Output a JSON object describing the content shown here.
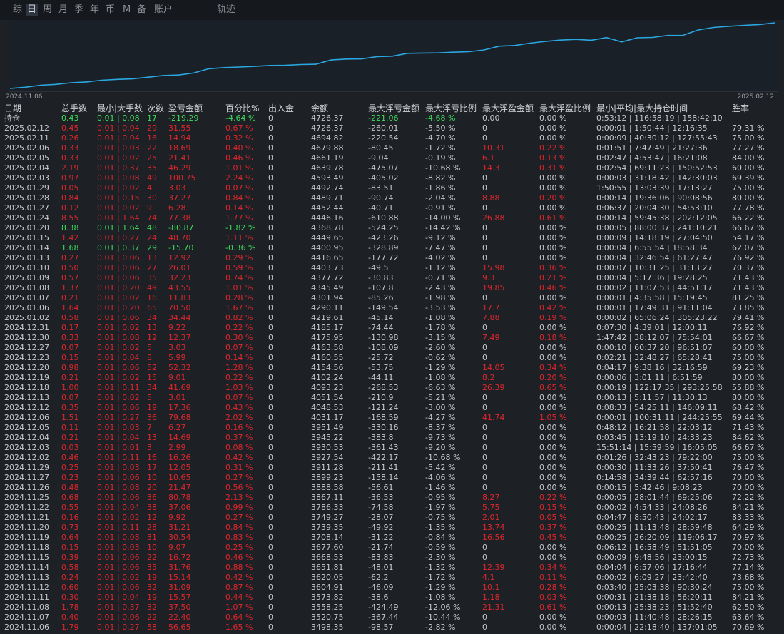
{
  "tabs": [
    "综",
    "日",
    "周",
    "月",
    "季",
    "年",
    "币",
    "M",
    "备",
    "账户"
  ],
  "selected_tab": "日",
  "track_tab": "轨迹",
  "curve": {
    "start_label": "2024.11.06",
    "end_label": "2025.02.12"
  },
  "table": {
    "columns": [
      "日期",
      "总手数",
      "最小|大手数",
      "次数",
      "盈亏金额",
      "百分比%",
      "出入金",
      "余额",
      "最大浮亏金额",
      "最大浮亏比例",
      "最大浮盈金额",
      "最大浮盈比例",
      "最小|平均|最大持仓时间",
      "胜率"
    ],
    "holding": [
      "持仓",
      "0.43",
      "0.01 | 0.08",
      "17",
      "-219.29",
      "-4.64 %",
      "0",
      "4726.37",
      "-221.06",
      "-4.68 %",
      "0.00",
      "0.00 %",
      "0:53:12 | 116:58:19 | 158:42:10"
    ],
    "rows": [
      [
        "2025.02.12",
        "0.45",
        "0.01 | 0.04",
        "29",
        "31.55",
        "0.67 %",
        "0",
        "4726.37",
        "-260.01",
        "-5.50 %",
        "0",
        "0.00 %",
        "0:00:01 | 1:50:44 | 12:16:35",
        "79.31 %"
      ],
      [
        "2025.02.11",
        "0.26",
        "0.01 | 0.04",
        "16",
        "14.94",
        "0.32 %",
        "0",
        "4694.82",
        "-220.54",
        "-4.70 %",
        "0",
        "0.00 %",
        "0:00:09 | 40:30:12 | 127:55:43",
        "75.00 %"
      ],
      [
        "2025.02.06",
        "0.33",
        "0.01 | 0.03",
        "22",
        "18.69",
        "0.40 %",
        "0",
        "4679.88",
        "-80.45",
        "-1.72 %",
        "10.31",
        "0.22 %",
        "0:01:51 | 7:47:49 | 21:27:36",
        "77.27 %"
      ],
      [
        "2025.02.05",
        "0.33",
        "0.01 | 0.02",
        "25",
        "21.41",
        "0.46 %",
        "0",
        "4661.19",
        "-9.04",
        "-0.19 %",
        "6.1",
        "0.13 %",
        "0:02:47 | 4:53:47 | 16:21:08",
        "84.00 %"
      ],
      [
        "2025.02.04",
        "2.19",
        "0.01 | 0.37",
        "35",
        "46.29",
        "1.01 %",
        "0",
        "4639.78",
        "-475.07",
        "-10.68 %",
        "14.3",
        "0.31 %",
        "0:02:54 | 69:11:23 | 150:52:53",
        "60.00 %"
      ],
      [
        "2025.02.03",
        "0.97",
        "0.01 | 0.08",
        "49",
        "100.75",
        "2.24 %",
        "0",
        "4593.49",
        "-405.02",
        "-8.82 %",
        "0",
        "0.00 %",
        "0:00:03 | 31:18:42 | 142:30:03",
        "69.39 %"
      ],
      [
        "2025.01.29",
        "0.05",
        "0.01 | 0.02",
        "4",
        "3.03",
        "0.07 %",
        "0",
        "4492.74",
        "-83.51",
        "-1.86 %",
        "0",
        "0.00 %",
        "1:50:55 | 13:03:39 | 17:13:27",
        "75.00 %"
      ],
      [
        "2025.01.28",
        "0.84",
        "0.01 | 0.15",
        "30",
        "37.27",
        "0.84 %",
        "0",
        "4489.71",
        "-90.74",
        "-2.04 %",
        "8.88",
        "0.20 %",
        "0:00:14 | 19:36:06 | 90:08:56",
        "80.00 %"
      ],
      [
        "2025.01.27",
        "0.12",
        "0.01 | 0.02",
        "9",
        "6.28",
        "0.14 %",
        "0",
        "4452.44",
        "-40.71",
        "-0.91 %",
        "0",
        "0.00 %",
        "0:06:37 | 20:04:30 | 54:53:10",
        "77.78 %"
      ],
      [
        "2025.01.24",
        "8.55",
        "0.01 | 1.64",
        "74",
        "77.38",
        "1.77 %",
        "0",
        "4446.16",
        "-610.88",
        "-14.00 %",
        "26.88",
        "0.61 %",
        "0:00:14 | 59:45:38 | 202:12:05",
        "66.22 %"
      ],
      [
        "2025.01.20",
        "8.38",
        "0.01 | 1.64",
        "48",
        "-80.87",
        "-1.82 %",
        "0",
        "4368.78",
        "-524.25",
        "-14.42 %",
        "0",
        "0.00 %",
        "0:00:05 | 88:00:37 | 241:10:21",
        "66.67 %"
      ],
      [
        "2025.01.15",
        "1.42",
        "0.01 | 0.27",
        "24",
        "48.70",
        "1.11 %",
        "0",
        "4449.65",
        "-423.26",
        "-9.12 %",
        "0",
        "0.00 %",
        "0:00:09 | 14:18:19 | 27:04:50",
        "54.17 %"
      ],
      [
        "2025.01.14",
        "1.68",
        "0.01 | 0.37",
        "29",
        "-15.70",
        "-0.36 %",
        "0",
        "4400.95",
        "-328.89",
        "-7.47 %",
        "0",
        "0.00 %",
        "0:00:04 | 6:55:54 | 18:58:34",
        "62.07 %"
      ],
      [
        "2025.01.13",
        "0.27",
        "0.01 | 0.06",
        "13",
        "12.92",
        "0.29 %",
        "0",
        "4416.65",
        "-177.72",
        "-4.02 %",
        "0",
        "0.00 %",
        "0:00:04 | 32:46:54 | 61:27:47",
        "76.92 %"
      ],
      [
        "2025.01.10",
        "0.50",
        "0.01 | 0.06",
        "27",
        "26.01",
        "0.59 %",
        "0",
        "4403.73",
        "-49.5",
        "-1.12 %",
        "15.98",
        "0.36 %",
        "0:00:07 | 10:31:25 | 31:13:27",
        "70.37 %"
      ],
      [
        "2025.01.09",
        "0.57",
        "0.01 | 0.06",
        "35",
        "32.23",
        "0.74 %",
        "0",
        "4377.72",
        "-30.83",
        "-0.71 %",
        "9.3",
        "0.21 %",
        "0:00:04 | 5:17:36 | 19:28:25",
        "71.43 %"
      ],
      [
        "2025.01.08",
        "1.37",
        "0.01 | 0.20",
        "49",
        "43.55",
        "1.01 %",
        "0",
        "4345.49",
        "-107.8",
        "-2.43 %",
        "19.85",
        "0.46 %",
        "0:00:02 | 11:07:53 | 44:51:17",
        "71.43 %"
      ],
      [
        "2025.01.07",
        "0.21",
        "0.01 | 0.02",
        "16",
        "11.83",
        "0.28 %",
        "0",
        "4301.94",
        "-85.26",
        "-1.98 %",
        "0",
        "0.00 %",
        "0:00:01 | 4:35:58 | 15:19:45",
        "81.25 %"
      ],
      [
        "2025.01.06",
        "1.64",
        "0.01 | 0.20",
        "65",
        "70.50",
        "1.67 %",
        "0",
        "4290.11",
        "-149.54",
        "-3.53 %",
        "17.7",
        "0.42 %",
        "0:00:01 | 17:49:31 | 91:11:04",
        "73.85 %"
      ],
      [
        "2025.01.02",
        "0.58",
        "0.01 | 0.06",
        "34",
        "34.44",
        "0.82 %",
        "0",
        "4219.61",
        "-45.14",
        "-1.08 %",
        "7.88",
        "0.19 %",
        "0:00:02 | 65:06:24 | 305:23:22",
        "79.41 %"
      ],
      [
        "2024.12.31",
        "0.17",
        "0.01 | 0.02",
        "13",
        "9.22",
        "0.22 %",
        "0",
        "4185.17",
        "-74.44",
        "-1.78 %",
        "0",
        "0.00 %",
        "0:07:30 | 4:39:01 | 12:00:11",
        "76.92 %"
      ],
      [
        "2024.12.30",
        "0.33",
        "0.01 | 0.08",
        "12",
        "12.37",
        "0.30 %",
        "0",
        "4175.95",
        "-130.98",
        "-3.15 %",
        "7.49",
        "0.18 %",
        "1:47:42 | 38:12:07 | 75:54:01",
        "66.67 %"
      ],
      [
        "2024.12.27",
        "0.07",
        "0.01 | 0.02",
        "5",
        "3.03",
        "0.07 %",
        "0",
        "4163.58",
        "-108.09",
        "-2.60 %",
        "0",
        "0.00 %",
        "0:00:10 | 60:37:20 | 96:51:07",
        "60.00 %"
      ],
      [
        "2024.12.23",
        "0.15",
        "0.01 | 0.04",
        "8",
        "5.99",
        "0.14 %",
        "0",
        "4160.55",
        "-25.72",
        "-0.62 %",
        "0",
        "0.00 %",
        "0:02:21 | 32:48:27 | 65:28:41",
        "75.00 %"
      ],
      [
        "2024.12.20",
        "0.98",
        "0.01 | 0.06",
        "52",
        "52.32",
        "1.28 %",
        "0",
        "4154.56",
        "-53.75",
        "-1.29 %",
        "14.05",
        "0.34 %",
        "0:04:17 | 9:38:16 | 32:16:59",
        "69.23 %"
      ],
      [
        "2024.12.19",
        "0.21",
        "0.01 | 0.02",
        "15",
        "9.01",
        "0.22 %",
        "0",
        "4102.24",
        "-44.11",
        "-1.08 %",
        "8.2",
        "0.20 %",
        "0:00:06 | 3:01:11 | 6:51:59",
        "80.00 %"
      ],
      [
        "2024.12.18",
        "1.00",
        "0.01 | 0.11",
        "34",
        "41.69",
        "1.03 %",
        "0",
        "4093.23",
        "-268.53",
        "-6.63 %",
        "26.39",
        "0.65 %",
        "0:00:19 | 122:17:35 | 293:25:58",
        "55.88 %"
      ],
      [
        "2024.12.13",
        "0.07",
        "0.01 | 0.02",
        "5",
        "3.01",
        "0.07 %",
        "0",
        "4051.54",
        "-210.9",
        "-5.21 %",
        "0",
        "0.00 %",
        "0:00:13 | 5:11:57 | 11:30:13",
        "80.00 %"
      ],
      [
        "2024.12.12",
        "0.35",
        "0.01 | 0.06",
        "19",
        "17.36",
        "0.43 %",
        "0",
        "4048.53",
        "-121.24",
        "-3.00 %",
        "0",
        "0.00 %",
        "0:08:33 | 54:25:11 | 146:09:11",
        "68.42 %"
      ],
      [
        "2024.12.06",
        "1.51",
        "0.01 | 0.27",
        "36",
        "79.68",
        "2.02 %",
        "0",
        "4031.17",
        "-168.59",
        "-4.27 %",
        "41.74",
        "1.05 %",
        "0:00:01 | 100:31:11 | 244:25:55",
        "69.44 %"
      ],
      [
        "2024.12.05",
        "0.11",
        "0.01 | 0.03",
        "7",
        "6.27",
        "0.16 %",
        "0",
        "3951.49",
        "-330.16",
        "-8.37 %",
        "0",
        "0.00 %",
        "0:48:12 | 16:21:58 | 22:03:12",
        "71.43 %"
      ],
      [
        "2024.12.04",
        "0.21",
        "0.01 | 0.04",
        "13",
        "14.69",
        "0.37 %",
        "0",
        "3945.22",
        "-383.8",
        "-9.73 %",
        "0",
        "0.00 %",
        "0:03:45 | 13:19:10 | 24:33:23",
        "84.62 %"
      ],
      [
        "2024.12.03",
        "0.03",
        "0.01 | 0.01",
        "3",
        "2.99",
        "0.08 %",
        "0",
        "3930.53",
        "-361.43",
        "-9.20 %",
        "0",
        "0.00 %",
        "15:51:14 | 15:59:59 | 16:05:05",
        "66.67 %"
      ],
      [
        "2024.12.02",
        "0.46",
        "0.01 | 0.11",
        "16",
        "16.26",
        "0.42 %",
        "0",
        "3927.54",
        "-422.17",
        "-10.68 %",
        "0",
        "0.00 %",
        "0:01:26 | 32:43:23 | 79:22:00",
        "75.00 %"
      ],
      [
        "2024.11.29",
        "0.25",
        "0.01 | 0.03",
        "17",
        "12.05",
        "0.31 %",
        "0",
        "3911.28",
        "-211.41",
        "-5.42 %",
        "0",
        "0.00 %",
        "0:00:30 | 11:33:26 | 37:50:41",
        "76.47 %"
      ],
      [
        "2024.11.27",
        "0.23",
        "0.01 | 0.06",
        "10",
        "10.65",
        "0.27 %",
        "0",
        "3899.23",
        "-158.14",
        "-4.06 %",
        "0",
        "0.00 %",
        "0:14:58 | 34:39:44 | 62:57:16",
        "70.00 %"
      ],
      [
        "2024.11.26",
        "0.48",
        "0.01 | 0.08",
        "20",
        "21.47",
        "0.56 %",
        "0",
        "3888.58",
        "-56.61",
        "-1.46 %",
        "0",
        "0.00 %",
        "0:00:15 | 5:42:46 | 9:08:23",
        "70.00 %"
      ],
      [
        "2024.11.25",
        "0.68",
        "0.01 | 0.06",
        "36",
        "80.78",
        "2.13 %",
        "0",
        "3867.11",
        "-36.53",
        "-0.95 %",
        "8.27",
        "0.22 %",
        "0:00:05 | 28:01:44 | 69:25:06",
        "72.22 %"
      ],
      [
        "2024.11.22",
        "0.55",
        "0.01 | 0.04",
        "38",
        "37.06",
        "0.99 %",
        "0",
        "3786.33",
        "-74.58",
        "-1.97 %",
        "5.75",
        "0.15 %",
        "0:00:02 | 4:54:33 | 24:08:26",
        "84.21 %"
      ],
      [
        "2024.11.21",
        "0.16",
        "0.01 | 0.02",
        "12",
        "9.92",
        "0.27 %",
        "0",
        "3749.27",
        "-28.07",
        "-0.75 %",
        "2.01",
        "0.05 %",
        "0:04:47 | 8:50:43 | 24:02:17",
        "83.33 %"
      ],
      [
        "2024.11.20",
        "0.73",
        "0.01 | 0.11",
        "28",
        "31.21",
        "0.84 %",
        "0",
        "3739.35",
        "-49.92",
        "-1.35 %",
        "13.74",
        "0.37 %",
        "0:00:25 | 11:13:48 | 28:59:48",
        "64.29 %"
      ],
      [
        "2024.11.19",
        "0.64",
        "0.01 | 0.08",
        "31",
        "30.54",
        "0.83 %",
        "0",
        "3708.14",
        "-31.22",
        "-0.84 %",
        "16.56",
        "0.45 %",
        "0:00:25 | 26:20:09 | 119:06:17",
        "70.97 %"
      ],
      [
        "2024.11.18",
        "0.15",
        "0.01 | 0.03",
        "10",
        "9.07",
        "0.25 %",
        "0",
        "3677.60",
        "-21.74",
        "-0.59 %",
        "0",
        "0.00 %",
        "0:06:12 | 16:58:49 | 51:51:05",
        "70.00 %"
      ],
      [
        "2024.11.15",
        "0.39",
        "0.01 | 0.06",
        "22",
        "16.72",
        "0.46 %",
        "0",
        "3668.53",
        "-83.83",
        "-2.30 %",
        "0",
        "0.00 %",
        "0:00:09 | 9:48:56 | 23:00:15",
        "72.73 %"
      ],
      [
        "2024.11.14",
        "0.58",
        "0.01 | 0.06",
        "35",
        "31.76",
        "0.88 %",
        "0",
        "3651.81",
        "-48.01",
        "-1.32 %",
        "12.39",
        "0.34 %",
        "0:04:04 | 6:57:06 | 17:16:44",
        "77.14 %"
      ],
      [
        "2024.11.13",
        "0.24",
        "0.01 | 0.02",
        "19",
        "15.14",
        "0.42 %",
        "0",
        "3620.05",
        "-62.2",
        "-1.72 %",
        "4.1",
        "0.11 %",
        "0:00:02 | 6:09:27 | 23:42:40",
        "73.68 %"
      ],
      [
        "2024.11.12",
        "0.60",
        "0.01 | 0.06",
        "32",
        "31.09",
        "0.87 %",
        "0",
        "3604.91",
        "-46.09",
        "-1.29 %",
        "10.1",
        "0.28 %",
        "0:03:40 | 25:03:38 | 90:30:24",
        "75.00 %"
      ],
      [
        "2024.11.11",
        "0.30",
        "0.01 | 0.04",
        "19",
        "15.57",
        "0.44 %",
        "0",
        "3573.82",
        "-38.6",
        "-1.08 %",
        "1.18",
        "0.03 %",
        "0:00:31 | 21:38:18 | 56:20:11",
        "84.21 %"
      ],
      [
        "2024.11.08",
        "1.78",
        "0.01 | 0.37",
        "32",
        "37.50",
        "1.07 %",
        "0",
        "3558.25",
        "-424.49",
        "-12.06 %",
        "21.31",
        "0.61 %",
        "0:00:13 | 25:38:23 | 51:52:40",
        "62.50 %"
      ],
      [
        "2024.11.07",
        "0.40",
        "0.01 | 0.06",
        "22",
        "22.40",
        "0.64 %",
        "0",
        "3520.75",
        "-367.44",
        "-10.44 %",
        "0",
        "0.00 %",
        "0:00:03 | 11:40:48 | 28:26:15",
        "63.64 %"
      ],
      [
        "2024.11.06",
        "1.79",
        "0.01 | 0.27",
        "58",
        "56.65",
        "1.65 %",
        "0",
        "3498.35",
        "-98.57",
        "-2.82 %",
        "0",
        "0.00 %",
        "0:00:04 | 22:18:40 | 137:01:05",
        "70.69 %"
      ]
    ]
  }
}
